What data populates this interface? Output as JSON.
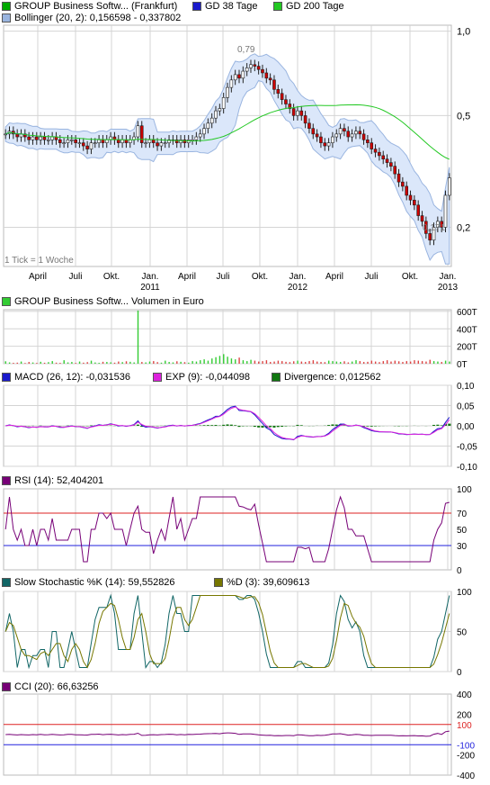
{
  "colors": {
    "price_up": "#ffffff",
    "price_down": "#cc0000",
    "price_outline": "#222222",
    "gd38": "#1a1acc",
    "gd200": "#22c822",
    "bollinger_fill": "#dbe7fa",
    "bollinger_line": "#9ab5e0",
    "grid": "#d4d4d4",
    "volume_up": "#33cc33",
    "volume_down": "#dd4444",
    "macd": "#1a1acc",
    "exp": "#dd22dd",
    "divergence": "#117711",
    "rsi": "#770077",
    "rsi_upper": "#dd2222",
    "rsi_lower": "#2222dd",
    "rsi_fill": "#ee4444",
    "stoch_k": "#116666",
    "stoch_d": "#777700",
    "cci": "#770077",
    "cci_fill_up": "#ee4466",
    "cci_fill_down": "#3333cc"
  },
  "legend": {
    "main": [
      {
        "label": "GROUP Business Softw... (Frankfurt)",
        "swatch": "#00aa00"
      },
      {
        "label": "GD 38 Tage",
        "swatch": "#1a1acc"
      },
      {
        "label": "GD 200 Tage",
        "swatch": "#22c822"
      },
      {
        "label": "Bollinger (20, 2): 0,156598 - 0,337802",
        "swatch": "#9ab5e0"
      }
    ],
    "volume": [
      {
        "label": "GROUP Business Softw... Volumen in Euro",
        "swatch": "#33cc33"
      }
    ],
    "macd": [
      {
        "label": "MACD (26, 12): -0,031536",
        "swatch": "#1a1acc"
      },
      {
        "label": "EXP (9): -0,044098",
        "swatch": "#dd22dd"
      },
      {
        "label": "Divergence: 0,012562",
        "swatch": "#117711"
      }
    ],
    "rsi": [
      {
        "label": "RSI (14): 52,404201",
        "swatch": "#770077"
      }
    ],
    "stoch": [
      {
        "label": "Slow Stochastic %K (14): 59,552826",
        "swatch": "#116666"
      },
      {
        "label": "%D (3): 39,609613",
        "swatch": "#777700"
      }
    ],
    "cci": [
      {
        "label": "CCI (20): 66,63256",
        "swatch": "#770077"
      }
    ]
  },
  "tick_note": "1 Tick = 1 Woche",
  "annotations": {
    "high": "0,79",
    "low": "0,171"
  },
  "time_axis": [
    {
      "label": "April",
      "year": ""
    },
    {
      "label": "Juli",
      "year": ""
    },
    {
      "label": "Okt.",
      "year": ""
    },
    {
      "label": "Jan.",
      "year": "2011"
    },
    {
      "label": "April",
      "year": ""
    },
    {
      "label": "Juli",
      "year": ""
    },
    {
      "label": "Okt.",
      "year": ""
    },
    {
      "label": "Jan.",
      "year": "2012"
    },
    {
      "label": "April",
      "year": ""
    },
    {
      "label": "Juli",
      "year": ""
    },
    {
      "label": "Okt.",
      "year": ""
    },
    {
      "label": "Jan.",
      "year": "2013"
    }
  ],
  "chart_data": [
    {
      "type": "candlestick",
      "title": "GROUP Business Softw... (Frankfurt)",
      "scale": "log",
      "yticks": [
        {
          "v": 1.0,
          "label": "1,0"
        },
        {
          "v": 0.5,
          "label": "0,5"
        },
        {
          "v": 0.2,
          "label": "0,2"
        }
      ],
      "ylim": [
        0.145,
        1.05
      ],
      "closes": [
        0.43,
        0.44,
        0.43,
        0.42,
        0.43,
        0.42,
        0.41,
        0.42,
        0.41,
        0.42,
        0.41,
        0.41,
        0.42,
        0.41,
        0.4,
        0.4,
        0.41,
        0.41,
        0.4,
        0.4,
        0.39,
        0.38,
        0.4,
        0.4,
        0.41,
        0.4,
        0.41,
        0.42,
        0.41,
        0.4,
        0.41,
        0.4,
        0.41,
        0.42,
        0.46,
        0.4,
        0.4,
        0.41,
        0.4,
        0.39,
        0.4,
        0.4,
        0.41,
        0.41,
        0.4,
        0.41,
        0.4,
        0.41,
        0.41,
        0.42,
        0.43,
        0.45,
        0.47,
        0.49,
        0.52,
        0.53,
        0.58,
        0.63,
        0.67,
        0.7,
        0.68,
        0.72,
        0.74,
        0.76,
        0.75,
        0.73,
        0.71,
        0.68,
        0.67,
        0.62,
        0.6,
        0.57,
        0.55,
        0.53,
        0.5,
        0.52,
        0.5,
        0.47,
        0.45,
        0.43,
        0.42,
        0.4,
        0.39,
        0.4,
        0.42,
        0.43,
        0.45,
        0.44,
        0.42,
        0.43,
        0.44,
        0.43,
        0.41,
        0.4,
        0.38,
        0.37,
        0.36,
        0.35,
        0.34,
        0.33,
        0.31,
        0.29,
        0.28,
        0.26,
        0.25,
        0.24,
        0.22,
        0.21,
        0.19,
        0.18,
        0.2,
        0.21,
        0.2,
        0.26,
        0.3
      ],
      "volumes": [
        28,
        15,
        10,
        12,
        25,
        8,
        20,
        14,
        9,
        22,
        11,
        18,
        30,
        12,
        10,
        40,
        15,
        20,
        9,
        25,
        12,
        18,
        35,
        14,
        10,
        22,
        20,
        16,
        12,
        25,
        18,
        28,
        22,
        15,
        610,
        20,
        15,
        25,
        30,
        18,
        12,
        35,
        20,
        15,
        28,
        22,
        18,
        12,
        30,
        25,
        40,
        50,
        35,
        60,
        75,
        90,
        110,
        80,
        60,
        50,
        70,
        40,
        30,
        45,
        35,
        25,
        30,
        40,
        20,
        25,
        35,
        30,
        22,
        18,
        28,
        35,
        25,
        20,
        30,
        40,
        25,
        20,
        18,
        35,
        30,
        25,
        20,
        28,
        15,
        25,
        40,
        30,
        20,
        22,
        35,
        25,
        18,
        30,
        40,
        25,
        35,
        28,
        20,
        30,
        25,
        40,
        35,
        30,
        25,
        45,
        30,
        25,
        20,
        35,
        25
      ]
    },
    {
      "type": "bar",
      "title": "GROUP Business Softw... Volumen in Euro",
      "yticks": [
        {
          "v": 600,
          "label": "600T"
        },
        {
          "v": 400,
          "label": "400T"
        },
        {
          "v": 200,
          "label": "200T"
        },
        {
          "v": 0,
          "label": "0T"
        }
      ],
      "ylim": [
        0,
        620
      ]
    },
    {
      "type": "line",
      "title": "MACD",
      "yticks": [
        {
          "v": 0.1,
          "label": "0,10"
        },
        {
          "v": 0.05,
          "label": "0,05"
        },
        {
          "v": 0.0,
          "label": "0,00"
        },
        {
          "v": -0.05,
          "label": "-0,05"
        },
        {
          "v": -0.1,
          "label": "-0,10"
        }
      ],
      "ylim": [
        -0.1,
        0.1
      ]
    },
    {
      "type": "line",
      "title": "RSI (14)",
      "yticks": [
        {
          "v": 100,
          "label": "100"
        },
        {
          "v": 70,
          "label": "70"
        },
        {
          "v": 50,
          "label": "50"
        },
        {
          "v": 30,
          "label": "30"
        },
        {
          "v": 0,
          "label": "0"
        }
      ],
      "ylim": [
        0,
        100
      ],
      "upper": 70,
      "lower": 30
    },
    {
      "type": "line",
      "title": "Slow Stochastic",
      "yticks": [
        {
          "v": 100,
          "label": "100"
        },
        {
          "v": 50,
          "label": "50"
        },
        {
          "v": 0,
          "label": "0"
        }
      ],
      "ylim": [
        0,
        100
      ]
    },
    {
      "type": "line",
      "title": "CCI (20)",
      "yticks": [
        {
          "v": 400,
          "label": "400"
        },
        {
          "v": 200,
          "label": "200"
        },
        {
          "v": 100,
          "label": "100"
        },
        {
          "v": -100,
          "label": "-100"
        },
        {
          "v": -200,
          "label": "-200"
        },
        {
          "v": -400,
          "label": "-400"
        }
      ],
      "ylim": [
        -400,
        400
      ],
      "upper": 100,
      "lower": -100
    }
  ]
}
